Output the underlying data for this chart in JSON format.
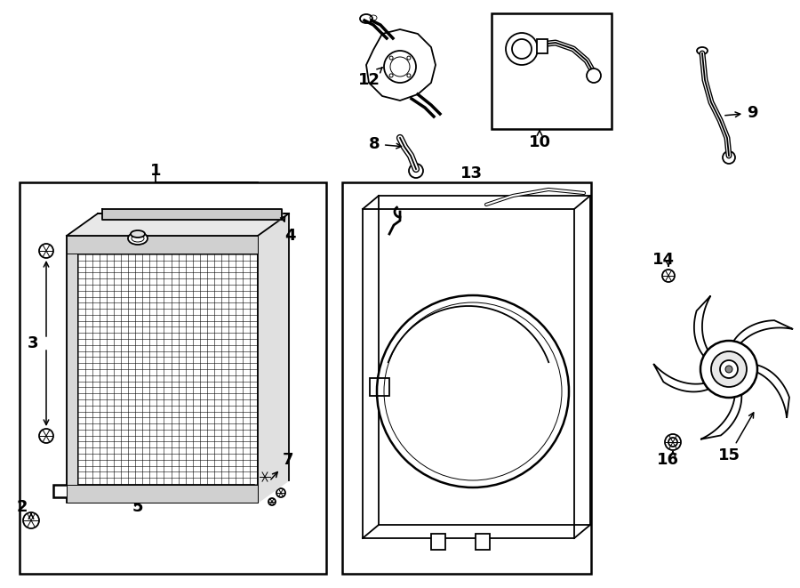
{
  "bg_color": "#ffffff",
  "line_color": "#000000",
  "lw": 1.3,
  "lw_thick": 1.8,
  "lw_thin": 0.5,
  "fontsize_label": 13
}
